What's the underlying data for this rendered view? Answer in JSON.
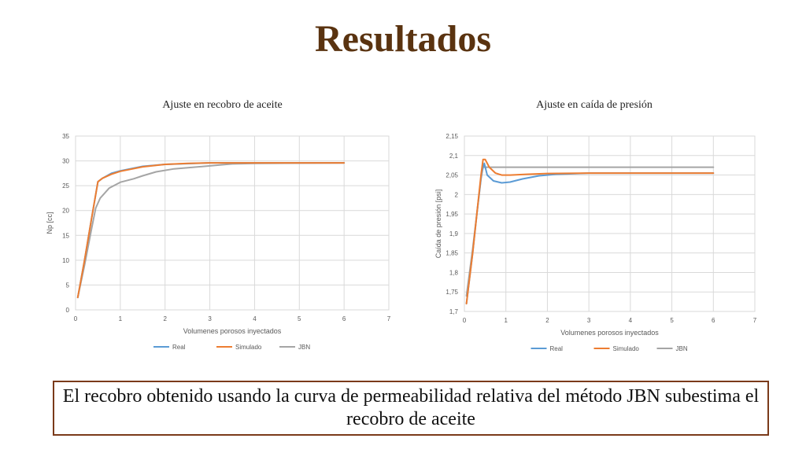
{
  "slide": {
    "title": "Resultados",
    "conclusion": "El recobro obtenido usando la curva de permeabilidad relativa del método JBN subestima el recobro de aceite"
  },
  "colors": {
    "Real": "#5b9bd5",
    "Simulado": "#ed7d31",
    "JBN": "#a5a5a5",
    "title": "#5a3310",
    "border": "#7a3a1a"
  },
  "chart_data": [
    {
      "type": "line",
      "title": "Ajuste en recobro de aceite",
      "xlabel": "Volumenes porosos inyectados",
      "ylabel": "Np [cc]",
      "xlim": [
        0,
        7
      ],
      "ylim": [
        0,
        35
      ],
      "xticks": [
        "0",
        "1",
        "2",
        "3",
        "4",
        "5",
        "6",
        "7"
      ],
      "yticks": [
        "0",
        "5",
        "10",
        "15",
        "20",
        "25",
        "30",
        "35"
      ],
      "grid": true,
      "legend": "bottom",
      "series": [
        {
          "name": "Real",
          "points": [
            [
              0.05,
              2.5
            ],
            [
              0.2,
              10
            ],
            [
              0.35,
              18
            ],
            [
              0.5,
              25.8
            ],
            [
              0.6,
              26.5
            ],
            [
              0.8,
              27.5
            ],
            [
              1.0,
              28
            ],
            [
              1.5,
              28.9
            ],
            [
              2.0,
              29.3
            ],
            [
              3.0,
              29.6
            ],
            [
              4.0,
              29.6
            ],
            [
              6.0,
              29.6
            ]
          ]
        },
        {
          "name": "Simulado",
          "points": [
            [
              0.05,
              2.5
            ],
            [
              0.2,
              10
            ],
            [
              0.35,
              18
            ],
            [
              0.5,
              25.8
            ],
            [
              0.6,
              26.5
            ],
            [
              0.8,
              27.3
            ],
            [
              1.0,
              27.9
            ],
            [
              1.5,
              28.8
            ],
            [
              2.0,
              29.3
            ],
            [
              2.5,
              29.5
            ],
            [
              3.0,
              29.6
            ],
            [
              6.0,
              29.6
            ]
          ]
        },
        {
          "name": "JBN",
          "points": [
            [
              0.05,
              2.5
            ],
            [
              0.2,
              9
            ],
            [
              0.35,
              16
            ],
            [
              0.45,
              20.5
            ],
            [
              0.55,
              22.5
            ],
            [
              0.75,
              24.5
            ],
            [
              1.0,
              25.7
            ],
            [
              1.3,
              26.4
            ],
            [
              1.5,
              27
            ],
            [
              1.8,
              27.8
            ],
            [
              2.2,
              28.4
            ],
            [
              3.0,
              29
            ],
            [
              3.5,
              29.4
            ],
            [
              4.0,
              29.5
            ],
            [
              6.0,
              29.6
            ]
          ]
        }
      ]
    },
    {
      "type": "line",
      "title": "Ajuste en caída de presión",
      "xlabel": "Volumenes porosos inyectados",
      "ylabel": "Caída de presión [psi]",
      "xlim": [
        0,
        7
      ],
      "ylim": [
        1.7,
        2.15
      ],
      "xticks": [
        "0",
        "1",
        "2",
        "3",
        "4",
        "5",
        "6",
        "7"
      ],
      "yticks": [
        "1,7",
        "1,75",
        "1,8",
        "1,85",
        "1,9",
        "1,95",
        "2",
        "2,05",
        "2,1",
        "2,15"
      ],
      "grid": true,
      "legend": "bottom",
      "series": [
        {
          "name": "Real",
          "points": [
            [
              0.05,
              1.72
            ],
            [
              0.2,
              1.85
            ],
            [
              0.3,
              1.95
            ],
            [
              0.42,
              2.06
            ],
            [
              0.48,
              2.08
            ],
            [
              0.55,
              2.05
            ],
            [
              0.7,
              2.035
            ],
            [
              0.9,
              2.03
            ],
            [
              1.1,
              2.032
            ],
            [
              1.4,
              2.04
            ],
            [
              1.8,
              2.048
            ],
            [
              2.2,
              2.052
            ],
            [
              3.0,
              2.055
            ],
            [
              6.0,
              2.055
            ]
          ]
        },
        {
          "name": "Simulado",
          "points": [
            [
              0.05,
              1.72
            ],
            [
              0.2,
              1.85
            ],
            [
              0.3,
              1.95
            ],
            [
              0.4,
              2.05
            ],
            [
              0.45,
              2.09
            ],
            [
              0.5,
              2.09
            ],
            [
              0.6,
              2.07
            ],
            [
              0.75,
              2.055
            ],
            [
              0.9,
              2.05
            ],
            [
              1.1,
              2.05
            ],
            [
              1.5,
              2.052
            ],
            [
              2.0,
              2.054
            ],
            [
              3.0,
              2.055
            ],
            [
              6.0,
              2.055
            ]
          ]
        },
        {
          "name": "JBN",
          "points": [
            [
              0.05,
              1.74
            ],
            [
              0.2,
              1.86
            ],
            [
              0.3,
              1.95
            ],
            [
              0.4,
              2.04
            ],
            [
              0.45,
              2.07
            ],
            [
              0.6,
              2.07
            ],
            [
              6.0,
              2.07
            ]
          ]
        }
      ]
    }
  ]
}
